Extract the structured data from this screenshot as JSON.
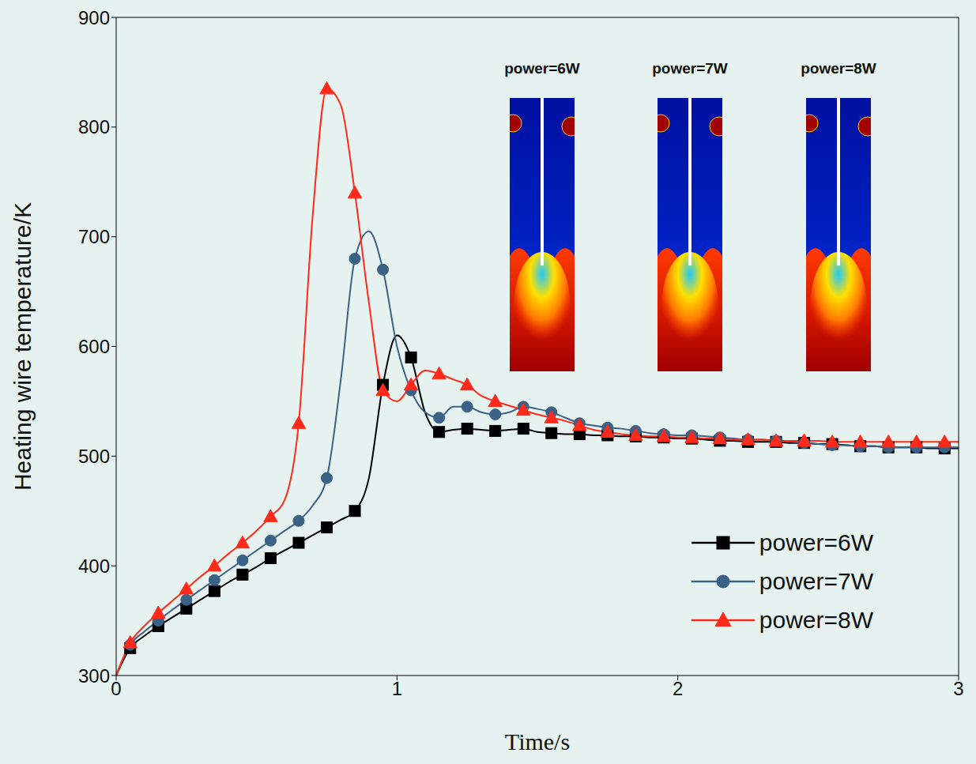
{
  "chart_data": {
    "type": "line",
    "x_label": "Time/s",
    "y_label": "Heating wire temperature/K",
    "x": [
      0,
      0.05,
      0.1,
      0.15,
      0.2,
      0.25,
      0.3,
      0.35,
      0.4,
      0.45,
      0.5,
      0.55,
      0.6,
      0.65,
      0.7,
      0.75,
      0.8,
      0.85,
      0.9,
      0.95,
      1.0,
      1.05,
      1.1,
      1.15,
      1.2,
      1.25,
      1.3,
      1.35,
      1.4,
      1.45,
      1.5,
      1.55,
      1.6,
      1.65,
      1.7,
      1.75,
      1.8,
      1.85,
      1.9,
      1.95,
      2.0,
      2.05,
      2.1,
      2.15,
      2.2,
      2.25,
      2.3,
      2.35,
      2.4,
      2.45,
      2.5,
      2.55,
      2.6,
      2.65,
      2.7,
      2.75,
      2.8,
      2.85,
      2.9,
      2.95,
      3.0
    ],
    "series": [
      {
        "name": "power=6W",
        "color": "#000000",
        "marker": "square",
        "values": [
          300,
          325,
          336,
          345,
          353,
          361,
          369,
          377,
          385,
          392,
          399,
          407,
          414,
          421,
          428,
          435,
          442,
          450,
          480,
          565,
          610,
          590,
          540,
          522,
          524,
          525,
          524,
          523,
          524,
          525,
          522,
          521,
          520,
          520,
          519,
          519,
          518,
          518,
          517,
          517,
          516,
          516,
          515,
          514,
          514,
          513,
          513,
          513,
          512,
          512,
          511,
          511,
          510,
          509,
          509,
          508,
          508,
          508,
          507,
          507,
          507
        ]
      },
      {
        "name": "power=7W",
        "color": "#3a6186",
        "marker": "circle",
        "values": [
          300,
          328,
          340,
          350,
          360,
          369,
          378,
          387,
          396,
          405,
          414,
          423,
          432,
          441,
          455,
          480,
          570,
          680,
          705,
          670,
          600,
          560,
          540,
          535,
          545,
          545,
          540,
          538,
          540,
          545,
          543,
          540,
          535,
          530,
          528,
          526,
          525,
          523,
          521,
          520,
          519,
          519,
          518,
          517,
          516,
          515,
          515,
          514,
          513,
          512,
          511,
          510,
          510,
          509,
          509,
          508,
          508,
          508,
          508,
          508,
          508
        ]
      },
      {
        "name": "power=8W",
        "color": "#ff2a1a",
        "marker": "triangle",
        "values": [
          300,
          330,
          345,
          357,
          368,
          379,
          390,
          400,
          411,
          421,
          432,
          445,
          460,
          530,
          720,
          835,
          820,
          740,
          640,
          560,
          550,
          565,
          578,
          575,
          570,
          565,
          555,
          550,
          546,
          542,
          538,
          535,
          532,
          528,
          524,
          522,
          520,
          519,
          518,
          518,
          517,
          517,
          516,
          516,
          515,
          515,
          515,
          514,
          514,
          514,
          514,
          513,
          513,
          513,
          513,
          513,
          513,
          513,
          513,
          513,
          513
        ]
      }
    ],
    "xlim": [
      0,
      3
    ],
    "xticks": [
      0,
      1,
      2,
      3
    ],
    "ylim": [
      300,
      900
    ],
    "yticks": [
      300,
      400,
      500,
      600,
      700,
      800,
      900
    ],
    "legend": "lower right",
    "annotations": [
      "power=6W",
      "power=7W",
      "power=8W"
    ]
  }
}
